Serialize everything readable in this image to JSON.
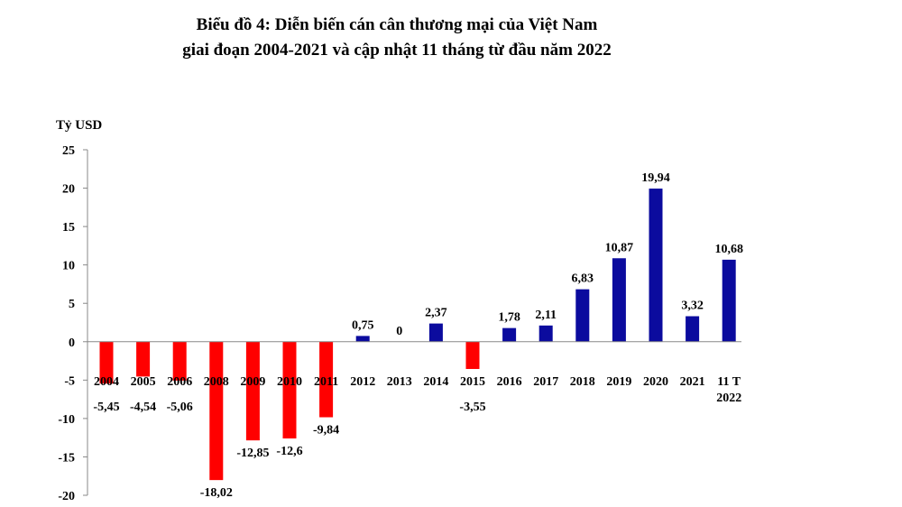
{
  "title_line1": "Biểu đồ 4: Diễn biến cán cân thương mại của Việt Nam",
  "title_line2": "giai đoạn 2004-2021 và cập nhật 11 tháng từ đầu năm 2022",
  "chart_data": {
    "type": "bar",
    "ylabel": "Tỷ USD",
    "ylim": [
      -20,
      25
    ],
    "yticks": [
      25,
      20,
      15,
      10,
      5,
      0,
      -5,
      -10,
      -15,
      -20
    ],
    "categories": [
      "2004",
      "2005",
      "2006",
      "2008",
      "2009",
      "2010",
      "2011",
      "2012",
      "2013",
      "2014",
      "2015",
      "2016",
      "2017",
      "2018",
      "2019",
      "2020",
      "2021",
      "11 T 2022"
    ],
    "category_lines": [
      [
        "2004"
      ],
      [
        "2005"
      ],
      [
        "2006"
      ],
      [
        "2008"
      ],
      [
        "2009"
      ],
      [
        "2010"
      ],
      [
        "2011"
      ],
      [
        "2012"
      ],
      [
        "2013"
      ],
      [
        "2014"
      ],
      [
        "2015"
      ],
      [
        "2016"
      ],
      [
        "2017"
      ],
      [
        "2018"
      ],
      [
        "2019"
      ],
      [
        "2020"
      ],
      [
        "2021"
      ],
      [
        "11 T",
        "2022"
      ]
    ],
    "values": [
      -5.45,
      -4.54,
      -5.06,
      -18.02,
      -12.85,
      -12.6,
      -9.84,
      0.75,
      0,
      2.37,
      -3.55,
      1.78,
      2.11,
      6.83,
      10.87,
      19.94,
      3.32,
      10.68
    ],
    "labels": [
      "-5,45",
      "-4,54",
      "-5,06",
      "-18,02",
      "-12,85",
      "-12,6",
      "-9,84",
      "0,75",
      "0",
      "2,37",
      "-3,55",
      "1,78",
      "2,11",
      "6,83",
      "10,87",
      "19,94",
      "3,32",
      "10,68"
    ],
    "colors": {
      "negative": "#ff0000",
      "positive": "#0b0b9e"
    },
    "grid": false,
    "legend": "none"
  }
}
